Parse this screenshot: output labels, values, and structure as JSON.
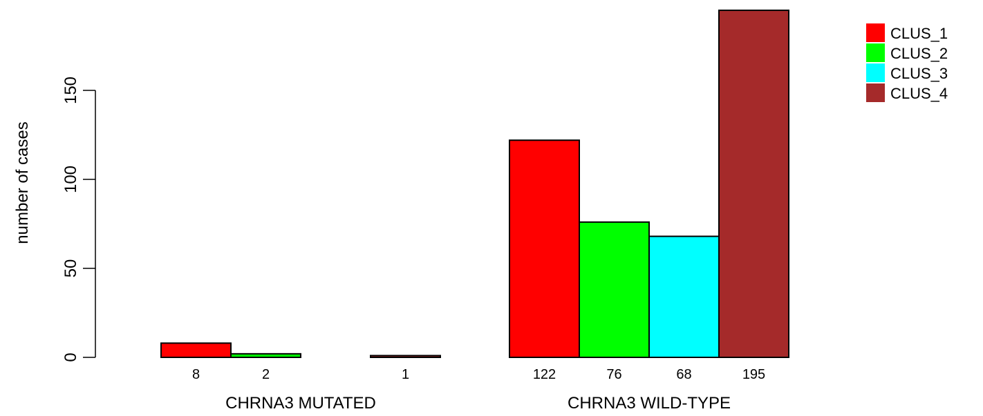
{
  "chart_data": {
    "type": "bar",
    "ylabel": "number of cases",
    "ylim": [
      0,
      200
    ],
    "yticks": [
      0,
      50,
      100,
      150
    ],
    "groups": [
      {
        "label": "CHRNA3 MUTATED",
        "values": [
          8,
          2,
          0,
          1
        ],
        "value_labels": [
          "8",
          "2",
          "",
          "1"
        ]
      },
      {
        "label": "CHRNA3 WILD-TYPE",
        "values": [
          122,
          76,
          68,
          195
        ],
        "value_labels": [
          "122",
          "76",
          "68",
          "195"
        ]
      }
    ],
    "series": [
      {
        "name": "CLUS_1",
        "color": "#ff0000"
      },
      {
        "name": "CLUS_2",
        "color": "#00ff00"
      },
      {
        "name": "CLUS_3",
        "color": "#00ffff"
      },
      {
        "name": "CLUS_4",
        "color": "#a52a2a"
      }
    ],
    "legend": "top-right",
    "grid": false
  }
}
